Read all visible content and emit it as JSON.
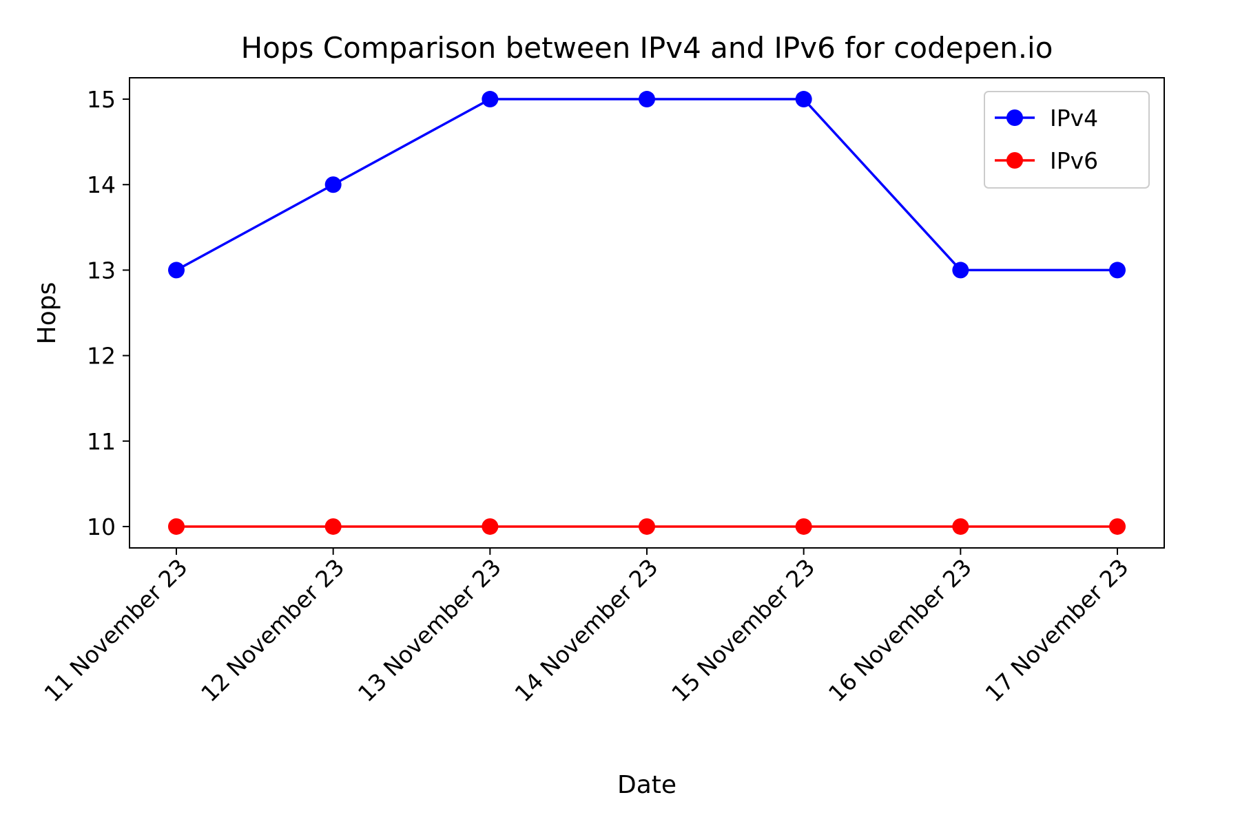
{
  "chart_data": {
    "type": "line",
    "title": "Hops Comparison between IPv4 and IPv6 for codepen.io",
    "xlabel": "Date",
    "ylabel": "Hops",
    "categories": [
      "11 November 23",
      "12 November 23",
      "13 November 23",
      "14 November 23",
      "15 November 23",
      "16 November 23",
      "17 November 23"
    ],
    "series": [
      {
        "name": "IPv4",
        "color": "#0000ff",
        "marker": "circle",
        "values": [
          13,
          14,
          15,
          15,
          15,
          13,
          13
        ]
      },
      {
        "name": "IPv6",
        "color": "#ff0000",
        "marker": "circle",
        "values": [
          10,
          10,
          10,
          10,
          10,
          10,
          10
        ]
      }
    ],
    "yticks": [
      10,
      11,
      12,
      13,
      14,
      15
    ],
    "ylim": [
      9.75,
      15.25
    ],
    "grid": false,
    "legend": "top-right"
  }
}
